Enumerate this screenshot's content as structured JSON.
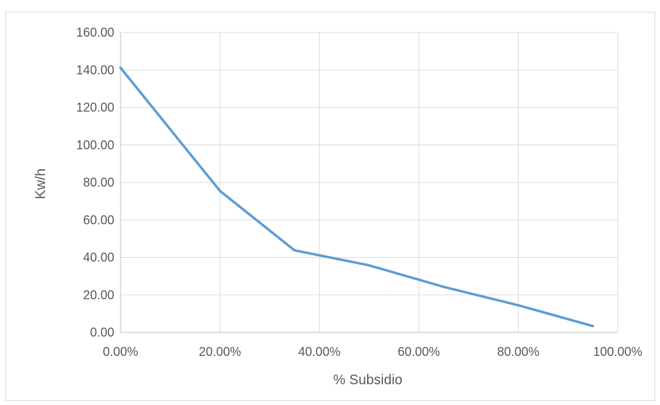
{
  "chart_data": {
    "type": "line",
    "title": "",
    "xlabel": "% Subsidio",
    "ylabel": "Kw/h",
    "xlim": [
      0,
      1
    ],
    "ylim": [
      0,
      160
    ],
    "x_ticks": [
      0,
      0.2,
      0.4,
      0.6,
      0.8,
      1.0
    ],
    "x_tick_labels": [
      "0.00%",
      "20.00%",
      "40.00%",
      "60.00%",
      "80.00%",
      "100.00%"
    ],
    "y_ticks": [
      0,
      20,
      40,
      60,
      80,
      100,
      120,
      140,
      160
    ],
    "y_tick_labels": [
      "0.00",
      "20.00",
      "40.00",
      "60.00",
      "80.00",
      "100.00",
      "120.00",
      "140.00",
      "160.00"
    ],
    "grid": true,
    "series": [
      {
        "color": "#5b9bd5",
        "x": [
          0.0,
          0.2,
          0.35,
          0.5,
          0.65,
          0.8,
          0.95
        ],
        "y": [
          141.2,
          75.5,
          43.8,
          35.8,
          24.3,
          14.5,
          3.4
        ]
      }
    ]
  }
}
